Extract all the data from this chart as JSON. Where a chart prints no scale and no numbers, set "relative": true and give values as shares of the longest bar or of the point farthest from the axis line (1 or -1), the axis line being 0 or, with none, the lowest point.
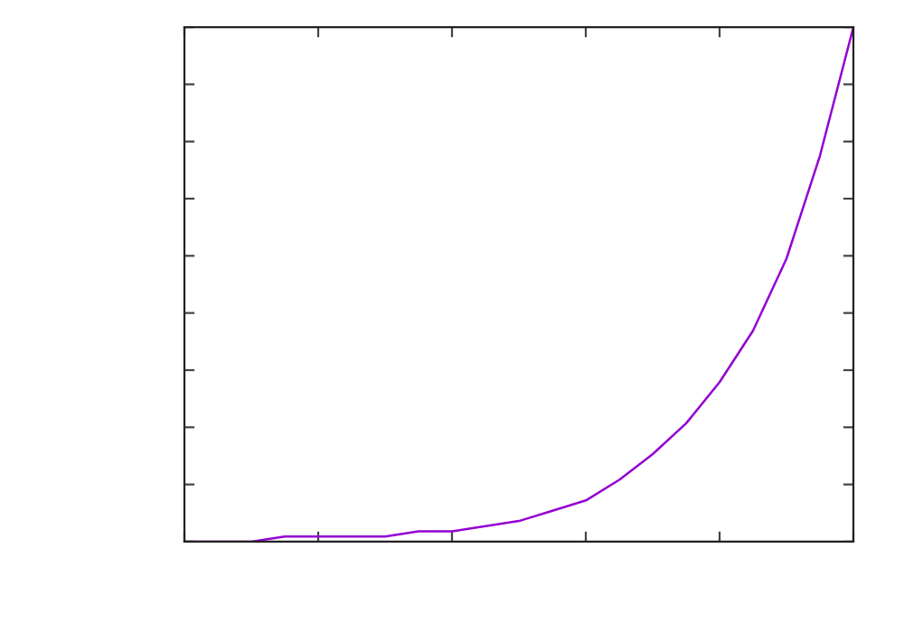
{
  "chart_data": {
    "type": "line",
    "relative": true,
    "categories": [
      null,
      null,
      null,
      null,
      null,
      null,
      null,
      null,
      null,
      null,
      null,
      null,
      null,
      null,
      null,
      null,
      null,
      null,
      null,
      null,
      null
    ],
    "series": [
      {
        "color": "#9400d3",
        "values": [
          0.0,
          0.0,
          0.0,
          0.01,
          0.01,
          0.01,
          0.01,
          0.02,
          0.02,
          0.03,
          0.04,
          0.06,
          0.08,
          0.12,
          0.17,
          0.23,
          0.31,
          0.41,
          0.55,
          0.75,
          1.0
        ]
      }
    ],
    "grid": false,
    "marker": "none",
    "line_style": "solid"
  }
}
